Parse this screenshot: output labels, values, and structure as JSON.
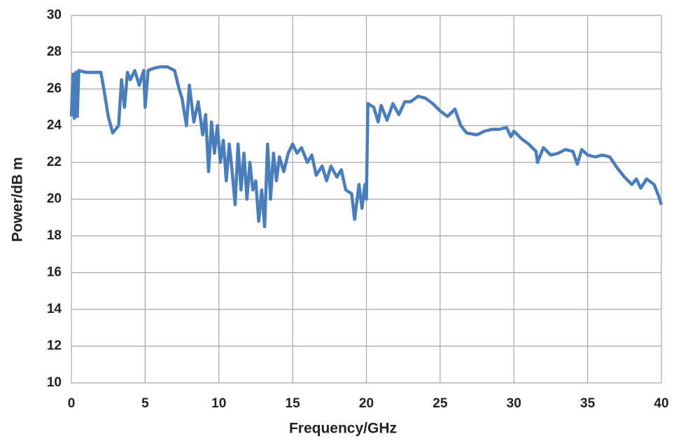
{
  "chart_data": {
    "type": "line",
    "xlabel": "Frequency/GHz",
    "ylabel": "Power/dB m",
    "x": [
      0,
      0.1,
      0.2,
      0.3,
      0.4,
      0.5,
      1,
      1.5,
      2,
      2.2,
      2.5,
      2.8,
      3.0,
      3.2,
      3.4,
      3.6,
      3.8,
      4.0,
      4.3,
      4.6,
      4.9,
      5.0,
      5.2,
      5.5,
      6,
      6.5,
      7,
      7.3,
      7.5,
      7.8,
      8.0,
      8.3,
      8.6,
      8.9,
      9.1,
      9.3,
      9.5,
      9.7,
      9.9,
      10.1,
      10.3,
      10.5,
      10.7,
      10.9,
      11.1,
      11.3,
      11.5,
      11.7,
      11.9,
      12.1,
      12.3,
      12.5,
      12.7,
      12.9,
      13.1,
      13.3,
      13.5,
      13.7,
      13.9,
      14.1,
      14.4,
      14.7,
      15.0,
      15.3,
      15.6,
      16.0,
      16.3,
      16.6,
      17.0,
      17.3,
      17.6,
      18.0,
      18.3,
      18.6,
      19.0,
      19.2,
      19.5,
      19.7,
      19.9,
      20.0,
      20.1,
      20.5,
      20.8,
      21.0,
      21.4,
      21.8,
      22.2,
      22.6,
      23.0,
      23.5,
      24.0,
      24.5,
      25.0,
      25.5,
      26.0,
      26.4,
      26.8,
      27.5,
      28.0,
      28.5,
      29.0,
      29.5,
      29.8,
      30.0,
      30.5,
      31.0,
      31.5,
      31.6,
      32.0,
      32.5,
      33.0,
      33.5,
      34.0,
      34.3,
      34.6,
      35.0,
      35.5,
      36.0,
      36.5,
      37.0,
      37.5,
      38.0,
      38.3,
      38.6,
      39.0,
      39.5,
      39.8,
      40.0
    ],
    "values": [
      24.5,
      26.8,
      24.4,
      26.9,
      24.5,
      27.0,
      26.9,
      26.9,
      26.9,
      26.0,
      24.5,
      23.6,
      23.8,
      24.0,
      26.5,
      25.0,
      26.9,
      26.5,
      27.0,
      26.2,
      27.0,
      25.0,
      27.0,
      27.1,
      27.2,
      27.2,
      27.0,
      26.0,
      25.5,
      24.0,
      26.2,
      24.2,
      25.3,
      23.5,
      24.6,
      21.5,
      24.2,
      22.5,
      24.0,
      22.0,
      23.2,
      21.0,
      23.0,
      21.5,
      19.7,
      23.0,
      20.5,
      22.5,
      20.0,
      22.0,
      20.5,
      21.0,
      18.8,
      20.5,
      18.5,
      23.0,
      20.0,
      22.5,
      21.0,
      22.3,
      21.5,
      22.5,
      23.0,
      22.5,
      22.8,
      22.0,
      22.4,
      21.3,
      21.8,
      21.0,
      21.8,
      21.2,
      21.6,
      20.5,
      20.3,
      18.9,
      20.8,
      19.5,
      20.8,
      20.0,
      25.2,
      25.0,
      24.2,
      25.1,
      24.3,
      25.2,
      24.6,
      25.3,
      25.3,
      25.6,
      25.5,
      25.2,
      24.8,
      24.5,
      24.9,
      24.0,
      23.6,
      23.5,
      23.7,
      23.8,
      23.8,
      23.9,
      23.4,
      23.7,
      23.3,
      23.0,
      22.6,
      22.0,
      22.8,
      22.4,
      22.5,
      22.7,
      22.6,
      21.9,
      22.7,
      22.4,
      22.3,
      22.4,
      22.3,
      21.7,
      21.2,
      20.8,
      21.1,
      20.6,
      21.1,
      20.8,
      20.2,
      19.7
    ],
    "color": "#4a7ebb",
    "xlim": [
      0,
      40
    ],
    "xticks": [
      0,
      5,
      10,
      15,
      20,
      25,
      30,
      35,
      40
    ],
    "ylim": [
      10,
      30
    ],
    "yticks": [
      10,
      12,
      14,
      16,
      18,
      20,
      22,
      24,
      26,
      28,
      30
    ],
    "grid": true
  }
}
